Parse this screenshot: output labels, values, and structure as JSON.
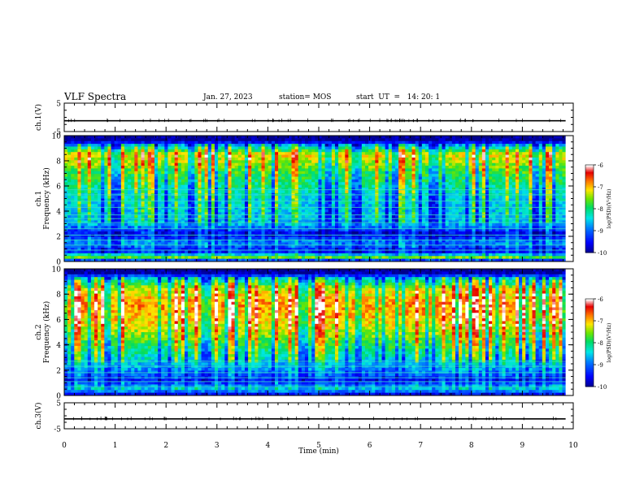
{
  "header": {
    "title": "VLF Spectra",
    "date": "Jan. 27, 2023",
    "station": "station= MOS",
    "start_ut": "start  UT  =   14: 20: 1"
  },
  "chart_data": [
    {
      "type": "line",
      "panel": "ch1-waveform",
      "ylabel": "ch.1(V)",
      "ylim": [
        -5,
        5
      ],
      "y_ticks": [
        "5",
        "-5"
      ],
      "series": [
        {
          "values": [
            -1.2,
            -1.2
          ]
        }
      ],
      "xlim": [
        0,
        10
      ]
    },
    {
      "type": "heatmap",
      "panel": "ch1-spectrogram",
      "ylabel": "ch.1\nFrequency (kHz)",
      "ylim": [
        0,
        10
      ],
      "y_ticks": [
        "0",
        "2",
        "4",
        "6",
        "8",
        "10"
      ],
      "xlim": [
        0,
        9.85
      ],
      "value_range": [
        -10,
        -6
      ],
      "colorbar_label": "log(PSD)(V²/Hz)",
      "colorbar_ticks": [
        "-6",
        "-7",
        "-8",
        "-9",
        "-10"
      ],
      "band_profile_khz_to_log_psd": [
        [
          0,
          -10
        ],
        [
          0.3,
          -7.5
        ],
        [
          0.8,
          -9.5
        ],
        [
          1.5,
          -8.8
        ],
        [
          2.2,
          -9.6
        ],
        [
          3,
          -8.6
        ],
        [
          5,
          -8.4
        ],
        [
          7,
          -7.8
        ],
        [
          8.5,
          -7.1
        ],
        [
          9.2,
          -8.6
        ],
        [
          9.6,
          -10
        ],
        [
          10,
          -10
        ]
      ]
    },
    {
      "type": "heatmap",
      "panel": "ch2-spectrogram",
      "ylabel": "ch.2\nFrequency (kHz)",
      "ylim": [
        0,
        10
      ],
      "y_ticks": [
        "0",
        "2",
        "4",
        "6",
        "8",
        "10"
      ],
      "xlim": [
        0,
        9.85
      ],
      "value_range": [
        -10,
        -6
      ],
      "colorbar_label": "log(PSD)(V²/Hz)",
      "colorbar_ticks": [
        "-6",
        "-7",
        "-8",
        "-9",
        "-10"
      ],
      "band_profile_khz_to_log_psd": [
        [
          0,
          -9.8
        ],
        [
          0.5,
          -8.4
        ],
        [
          1.2,
          -9.4
        ],
        [
          2,
          -8.8
        ],
        [
          3,
          -8.3
        ],
        [
          4.5,
          -7.6
        ],
        [
          6,
          -7.0
        ],
        [
          7.2,
          -6.8
        ],
        [
          8.4,
          -7.3
        ],
        [
          9.2,
          -8.4
        ],
        [
          9.7,
          -10
        ],
        [
          10,
          -10
        ]
      ]
    },
    {
      "type": "line",
      "panel": "ch3-waveform",
      "ylabel": "ch.3(V)",
      "ylim": [
        -5,
        5
      ],
      "y_ticks": [
        "5",
        "-5"
      ],
      "series": [
        {
          "values": [
            -1.2,
            -1.2
          ]
        }
      ],
      "xlim": [
        0,
        10
      ]
    }
  ],
  "x_axis": {
    "label": "Time (min)",
    "ticks": [
      "0",
      "1",
      "2",
      "3",
      "4",
      "5",
      "6",
      "7",
      "8",
      "9",
      "10"
    ],
    "range": [
      0,
      10
    ]
  }
}
